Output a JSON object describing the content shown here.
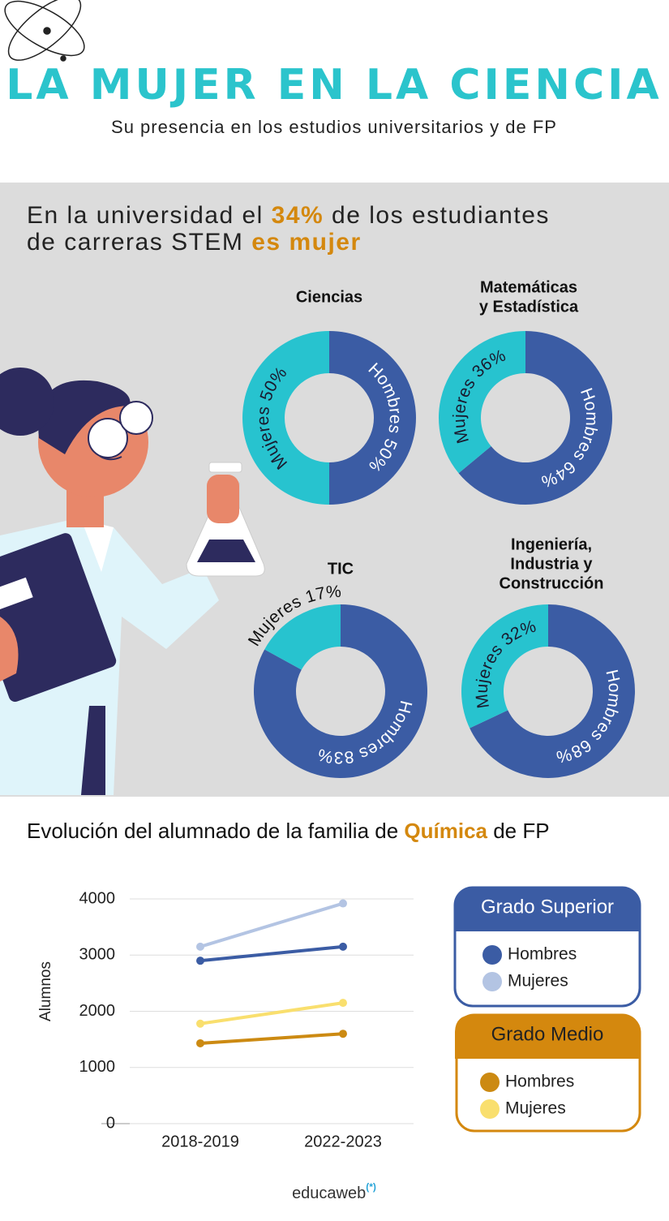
{
  "header": {
    "title": "LA MUJER EN LA CIENCIA",
    "subtitle": "Su presencia en los estudios universitarios y de FP"
  },
  "headline": {
    "lines": [
      [
        "En la universidad el ",
        "34%",
        " de los estudiantes"
      ],
      [
        "de carreras STEM ",
        "es mujer"
      ]
    ]
  },
  "chart_data": [
    {
      "type": "donut",
      "title": [
        "Ciencias"
      ],
      "series": [
        {
          "name": "Hombres",
          "color": "#3b5ca4"
        },
        {
          "name": "Mujeres",
          "color": "#27c3cf"
        }
      ],
      "values": [
        50,
        50
      ],
      "value_labels": [
        "Hombres 50%",
        "Mujeres 50%"
      ]
    },
    {
      "type": "donut",
      "title": [
        "Matemáticas",
        "y Estadística"
      ],
      "series": [
        {
          "name": "Hombres",
          "color": "#3b5ca4"
        },
        {
          "name": "Mujeres",
          "color": "#27c3cf"
        }
      ],
      "values": [
        64,
        36
      ],
      "value_labels": [
        "Hombres 64%",
        "Mujeres 36%"
      ]
    },
    {
      "type": "donut",
      "title": [
        "TIC"
      ],
      "series": [
        {
          "name": "Hombres",
          "color": "#3b5ca4"
        },
        {
          "name": "Mujeres",
          "color": "#27c3cf"
        }
      ],
      "values": [
        83,
        17
      ],
      "value_labels": [
        "Hombres 83%",
        "Mujeres 17%"
      ]
    },
    {
      "type": "donut",
      "title": [
        "Ingeniería,",
        "Industria y",
        "Construcción"
      ],
      "series": [
        {
          "name": "Hombres",
          "color": "#3b5ca4"
        },
        {
          "name": "Mujeres",
          "color": "#27c3cf"
        }
      ],
      "values": [
        68,
        32
      ],
      "value_labels": [
        "Hombres 68%",
        "Mujeres 32%"
      ]
    },
    {
      "type": "line",
      "title": [
        "Evolución del alumnado de la familia de ",
        "Química",
        " de FP"
      ],
      "y_label": "Alumnos",
      "categories": [
        "2018-2019",
        "2022-2023"
      ],
      "ylim": [
        0,
        4000
      ],
      "yticks": [
        0,
        1000,
        2000,
        3000,
        4000
      ],
      "grid": true,
      "groups": [
        {
          "title": "Grado Superior",
          "color": "#3b5ca4",
          "series": [
            {
              "name": "Hombres",
              "color": "#3b5ca4",
              "values": [
                2900,
                3150
              ]
            },
            {
              "name": "Mujeres",
              "color": "#b3c4e3",
              "values": [
                3150,
                3920
              ]
            }
          ]
        },
        {
          "title": "Grado Medio",
          "color": "#d4880e",
          "series": [
            {
              "name": "Hombres",
              "color": "#cc8a12",
              "values": [
                1430,
                1600
              ]
            },
            {
              "name": "Mujeres",
              "color": "#f9df6e",
              "values": [
                1780,
                2150
              ]
            }
          ]
        }
      ]
    }
  ],
  "footer": {
    "brand": "educaweb",
    "mark": "(*)"
  }
}
